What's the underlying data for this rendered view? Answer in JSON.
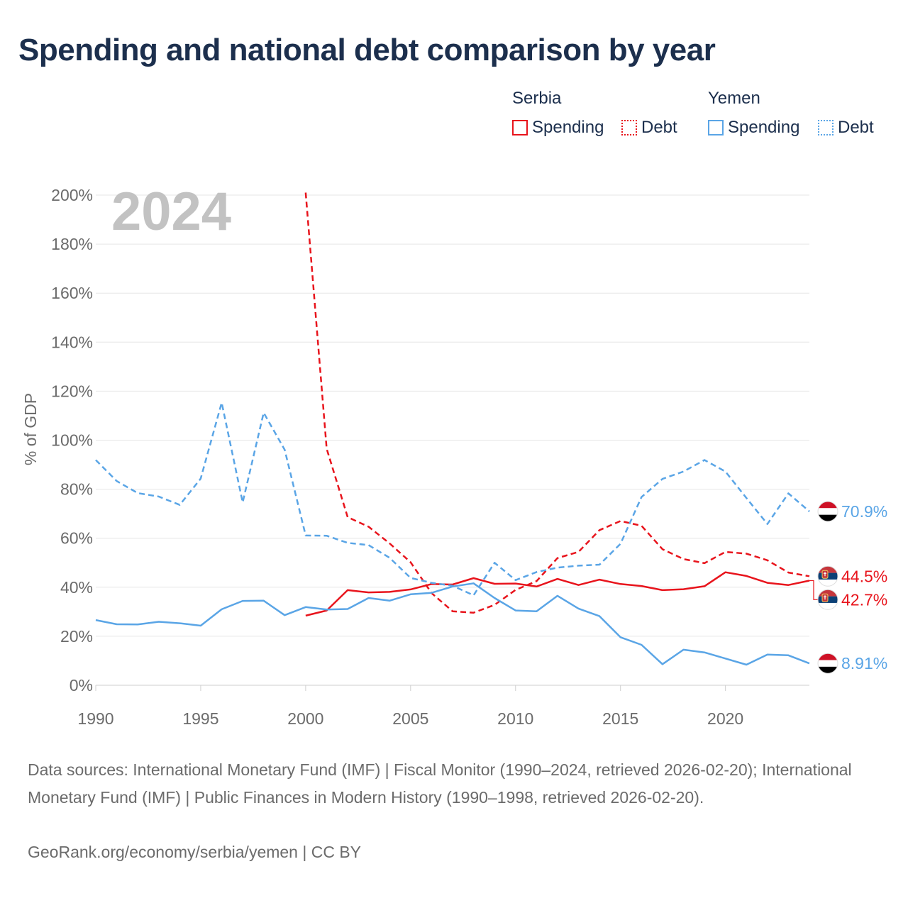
{
  "title": "Spending and national debt comparison by year",
  "legend": {
    "groups": [
      {
        "country": "Serbia",
        "spending_label": "Spending",
        "debt_label": "Debt",
        "color": "#e8141c"
      },
      {
        "country": "Yemen",
        "spending_label": "Spending",
        "debt_label": "Debt",
        "color": "#5aa5e6"
      }
    ]
  },
  "footer": {
    "sources": "Data sources: International Monetary Fund (IMF) | Fiscal Monitor (1990–2024, retrieved 2026-02-20); International Monetary Fund (IMF) | Public Finances in Modern History (1990–1998, retrieved 2026-02-20).",
    "credit": "GeoRank.org/economy/serbia/yemen | CC BY"
  },
  "chart_data": {
    "type": "line",
    "title": "Spending and national debt comparison by year",
    "year_label": "2024",
    "xlabel": "",
    "ylabel": "% of GDP",
    "xlim": [
      1990,
      2024
    ],
    "ylim": [
      0,
      200
    ],
    "x_ticks": [
      "1990",
      "1995",
      "2000",
      "2005",
      "2010",
      "2015",
      "2020"
    ],
    "y_ticks": [
      "0%",
      "20%",
      "40%",
      "60%",
      "80%",
      "100%",
      "120%",
      "140%",
      "160%",
      "180%",
      "200%"
    ],
    "grid": true,
    "series": [
      {
        "name": "Serbia Spending",
        "country": "Serbia",
        "kind": "spending",
        "color": "#e8141c",
        "dashed": false,
        "points": [
          [
            2000,
            28.4
          ],
          [
            2001,
            30.5
          ],
          [
            2002,
            38.8
          ],
          [
            2003,
            37.9
          ],
          [
            2004,
            38.1
          ],
          [
            2005,
            39.1
          ],
          [
            2006,
            41.3
          ],
          [
            2007,
            41.1
          ],
          [
            2008,
            43.7
          ],
          [
            2009,
            41.4
          ],
          [
            2010,
            41.5
          ],
          [
            2011,
            40.3
          ],
          [
            2012,
            43.4
          ],
          [
            2013,
            40.9
          ],
          [
            2014,
            43.1
          ],
          [
            2015,
            41.3
          ],
          [
            2016,
            40.5
          ],
          [
            2017,
            38.8
          ],
          [
            2018,
            39.2
          ],
          [
            2019,
            40.4
          ],
          [
            2020,
            46.1
          ],
          [
            2021,
            44.6
          ],
          [
            2022,
            41.8
          ],
          [
            2023,
            40.9
          ],
          [
            2024,
            42.7
          ]
        ],
        "end_label": "42.7%"
      },
      {
        "name": "Serbia Debt",
        "country": "Serbia",
        "kind": "debt",
        "color": "#e8141c",
        "dashed": true,
        "points": [
          [
            2000,
            201.0
          ],
          [
            2001,
            96.5
          ],
          [
            2002,
            68.6
          ],
          [
            2003,
            64.7
          ],
          [
            2004,
            57.9
          ],
          [
            2005,
            50.2
          ],
          [
            2006,
            37.6
          ],
          [
            2007,
            30.2
          ],
          [
            2008,
            29.6
          ],
          [
            2009,
            32.8
          ],
          [
            2010,
            38.9
          ],
          [
            2011,
            42.5
          ],
          [
            2012,
            51.9
          ],
          [
            2013,
            54.4
          ],
          [
            2014,
            63.3
          ],
          [
            2015,
            67.0
          ],
          [
            2016,
            65.1
          ],
          [
            2017,
            55.5
          ],
          [
            2018,
            51.5
          ],
          [
            2019,
            49.8
          ],
          [
            2020,
            54.4
          ],
          [
            2021,
            53.7
          ],
          [
            2022,
            51.0
          ],
          [
            2023,
            46.0
          ],
          [
            2024,
            44.5
          ]
        ],
        "end_label": "44.5%"
      },
      {
        "name": "Yemen Spending",
        "country": "Yemen",
        "kind": "spending",
        "color": "#5aa5e6",
        "dashed": false,
        "points": [
          [
            1990,
            26.6
          ],
          [
            1991,
            24.9
          ],
          [
            1992,
            24.8
          ],
          [
            1993,
            25.9
          ],
          [
            1994,
            25.3
          ],
          [
            1995,
            24.3
          ],
          [
            1996,
            31.0
          ],
          [
            1997,
            34.4
          ],
          [
            1998,
            34.5
          ],
          [
            1999,
            28.6
          ],
          [
            2000,
            31.9
          ],
          [
            2001,
            30.9
          ],
          [
            2002,
            31.1
          ],
          [
            2003,
            35.6
          ],
          [
            2004,
            34.5
          ],
          [
            2005,
            37.1
          ],
          [
            2006,
            37.7
          ],
          [
            2007,
            40.3
          ],
          [
            2008,
            41.6
          ],
          [
            2009,
            35.6
          ],
          [
            2010,
            30.5
          ],
          [
            2011,
            30.2
          ],
          [
            2012,
            36.5
          ],
          [
            2013,
            31.3
          ],
          [
            2014,
            28.2
          ],
          [
            2015,
            19.6
          ],
          [
            2016,
            16.5
          ],
          [
            2017,
            8.6
          ],
          [
            2018,
            14.5
          ],
          [
            2019,
            13.4
          ],
          [
            2020,
            10.9
          ],
          [
            2021,
            8.4
          ],
          [
            2022,
            12.5
          ],
          [
            2023,
            12.2
          ],
          [
            2024,
            8.91
          ]
        ],
        "end_label": "8.91%"
      },
      {
        "name": "Yemen Debt",
        "country": "Yemen",
        "kind": "debt",
        "color": "#5aa5e6",
        "dashed": true,
        "points": [
          [
            1990,
            91.9
          ],
          [
            1991,
            83.3
          ],
          [
            1992,
            78.4
          ],
          [
            1993,
            77.0
          ],
          [
            1994,
            73.6
          ],
          [
            1995,
            84.3
          ],
          [
            1996,
            115.3
          ],
          [
            1997,
            74.6
          ],
          [
            1998,
            111.2
          ],
          [
            1999,
            96.1
          ],
          [
            2000,
            61.1
          ],
          [
            2001,
            61.0
          ],
          [
            2002,
            58.1
          ],
          [
            2003,
            57.2
          ],
          [
            2004,
            52.0
          ],
          [
            2005,
            43.8
          ],
          [
            2006,
            41.8
          ],
          [
            2007,
            40.6
          ],
          [
            2008,
            36.7
          ],
          [
            2009,
            50.0
          ],
          [
            2010,
            42.9
          ],
          [
            2011,
            46.2
          ],
          [
            2012,
            48.0
          ],
          [
            2013,
            48.8
          ],
          [
            2014,
            49.2
          ],
          [
            2015,
            57.7
          ],
          [
            2016,
            76.8
          ],
          [
            2017,
            84.2
          ],
          [
            2018,
            87.2
          ],
          [
            2019,
            91.9
          ],
          [
            2020,
            87.2
          ],
          [
            2021,
            76.4
          ],
          [
            2022,
            65.8
          ],
          [
            2023,
            78.3
          ],
          [
            2024,
            70.9
          ]
        ],
        "end_label": "70.9%"
      }
    ]
  }
}
